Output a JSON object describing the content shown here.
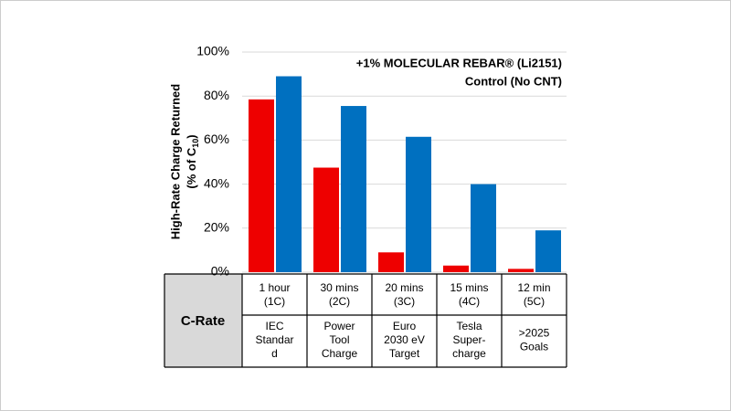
{
  "chart_data": {
    "type": "bar",
    "ylabel": {
      "main": "High-Rate Charge Returned",
      "sub_start": "(% of C",
      "subscript": "10",
      "sub_end": ")"
    },
    "categories": [
      [
        "1 hour",
        "(1C)"
      ],
      [
        "30 mins",
        "(2C)"
      ],
      [
        "20 mins",
        "(3C)"
      ],
      [
        "15 mins",
        "(4C)"
      ],
      [
        "12 min",
        "(5C)"
      ]
    ],
    "series": [
      {
        "name": "Control (No CNT)",
        "color": "#ee0000",
        "values": [
          78.5,
          47.5,
          9,
          3,
          1.5
        ]
      },
      {
        "name": "+1% MOLECULAR REBAR® (Li2151)",
        "color": "#0070c0",
        "values": [
          89,
          75.5,
          61.5,
          40,
          19
        ]
      }
    ],
    "ylim": [
      0,
      100
    ],
    "yticks": [
      {
        "value": 0,
        "label": "0%"
      },
      {
        "value": 20,
        "label": "20%"
      },
      {
        "value": 40,
        "label": "40%"
      },
      {
        "value": 60,
        "label": "60%"
      },
      {
        "value": 80,
        "label": "80%"
      },
      {
        "value": 100,
        "label": "100%"
      }
    ],
    "grid": true,
    "table": {
      "row_label": "C-Rate",
      "descriptions": [
        [
          "IEC",
          "Standar",
          "d"
        ],
        [
          "Power",
          "Tool",
          "Charge"
        ],
        [
          "Euro",
          "2030 eV",
          "Target"
        ],
        [
          "Tesla",
          "Super-",
          "charge"
        ],
        [
          ">2025",
          "Goals"
        ]
      ]
    }
  }
}
